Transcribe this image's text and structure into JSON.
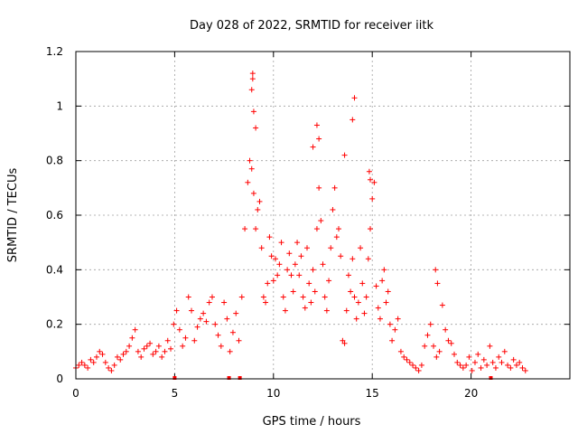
{
  "colors": {
    "series": "#ff0000",
    "background": "#ffffff",
    "grid": "#a0a0a0"
  },
  "chart_data": {
    "type": "scatter",
    "title": "Day 028 of 2022, SRMTID for receiver iitk",
    "xlabel": "GPS time / hours",
    "ylabel": "SRMTID / TECUs",
    "xlim": [
      0,
      25
    ],
    "ylim": [
      0,
      1.2
    ],
    "xticks": [
      0,
      5,
      10,
      15,
      20
    ],
    "xtick_labels": [
      "0",
      "5",
      "10",
      "15",
      "20"
    ],
    "yticks": [
      0,
      0.2,
      0.4,
      0.6,
      0.8,
      1,
      1.2
    ],
    "ytick_labels": [
      "0",
      "0.2",
      "0.4",
      "0.6",
      "0.8",
      "1",
      "1.2"
    ],
    "grid": true,
    "marker": "plus",
    "series": [
      {
        "name": "SRMTID",
        "x": [
          0.0,
          0.15,
          0.3,
          0.45,
          0.6,
          0.75,
          0.9,
          1.05,
          1.2,
          1.35,
          1.5,
          1.65,
          1.8,
          1.95,
          2.1,
          2.25,
          2.4,
          2.55,
          2.7,
          2.85,
          3.0,
          3.15,
          3.3,
          3.45,
          3.6,
          3.75,
          3.9,
          4.05,
          4.2,
          4.35,
          4.5,
          4.65,
          4.8,
          4.95,
          5.1,
          5.25,
          5.4,
          5.55,
          5.7,
          5.85,
          6.0,
          6.15,
          6.3,
          6.45,
          6.6,
          6.75,
          6.9,
          7.05,
          7.2,
          7.35,
          7.5,
          7.65,
          7.8,
          7.95,
          8.1,
          8.25,
          8.4,
          8.55,
          8.7,
          8.8,
          8.9,
          9.0,
          9.1,
          9.2,
          9.3,
          9.4,
          9.5,
          9.6,
          9.7,
          9.8,
          9.9,
          10.0,
          10.1,
          10.2,
          10.3,
          10.4,
          10.5,
          10.6,
          10.7,
          10.8,
          10.9,
          11.0,
          11.1,
          11.2,
          11.3,
          11.4,
          11.5,
          11.6,
          11.7,
          11.8,
          11.9,
          12.0,
          12.1,
          12.2,
          12.3,
          12.4,
          12.5,
          12.6,
          12.7,
          12.8,
          12.9,
          13.0,
          13.1,
          13.2,
          13.3,
          13.4,
          13.5,
          13.6,
          13.7,
          13.8,
          13.9,
          14.0,
          14.1,
          14.2,
          14.3,
          14.4,
          14.5,
          14.6,
          14.7,
          14.8,
          14.9,
          15.0,
          15.1,
          15.2,
          15.3,
          15.4,
          15.5,
          15.6,
          15.7,
          15.8,
          15.9,
          16.0,
          16.15,
          16.3,
          16.45,
          16.6,
          16.75,
          16.9,
          17.05,
          17.2,
          17.35,
          17.5,
          17.65,
          17.8,
          17.95,
          18.1,
          18.25,
          18.4,
          18.55,
          18.7,
          18.85,
          19.0,
          19.15,
          19.3,
          19.45,
          19.6,
          19.75,
          19.9,
          20.05,
          20.2,
          20.35,
          20.5,
          20.65,
          20.8,
          20.95,
          21.1,
          21.25,
          21.4,
          21.55,
          21.7,
          21.85,
          22.0,
          22.15,
          22.3,
          22.45,
          22.6,
          22.75,
          8.95,
          8.95,
          8.9,
          9.0,
          9.1,
          12.2,
          12.3,
          12.0,
          13.6,
          14.1,
          14.0,
          14.85,
          14.9,
          18.2,
          18.3,
          5.0,
          7.75,
          8.3,
          21.0
        ],
        "y": [
          0.04,
          0.05,
          0.06,
          0.05,
          0.04,
          0.07,
          0.06,
          0.08,
          0.1,
          0.09,
          0.06,
          0.04,
          0.03,
          0.05,
          0.08,
          0.07,
          0.09,
          0.1,
          0.12,
          0.15,
          0.18,
          0.1,
          0.08,
          0.11,
          0.12,
          0.13,
          0.09,
          0.1,
          0.12,
          0.08,
          0.1,
          0.14,
          0.11,
          0.2,
          0.25,
          0.18,
          0.12,
          0.15,
          0.3,
          0.25,
          0.14,
          0.19,
          0.22,
          0.24,
          0.21,
          0.28,
          0.3,
          0.2,
          0.16,
          0.12,
          0.28,
          0.22,
          0.1,
          0.17,
          0.24,
          0.14,
          0.3,
          0.55,
          0.72,
          0.8,
          0.77,
          0.68,
          0.55,
          0.62,
          0.65,
          0.48,
          0.3,
          0.28,
          0.35,
          0.52,
          0.45,
          0.36,
          0.44,
          0.38,
          0.42,
          0.5,
          0.3,
          0.25,
          0.4,
          0.46,
          0.38,
          0.32,
          0.42,
          0.5,
          0.38,
          0.45,
          0.3,
          0.26,
          0.48,
          0.35,
          0.28,
          0.4,
          0.32,
          0.55,
          0.7,
          0.58,
          0.42,
          0.3,
          0.25,
          0.36,
          0.48,
          0.62,
          0.7,
          0.52,
          0.55,
          0.45,
          0.14,
          0.13,
          0.25,
          0.38,
          0.32,
          0.44,
          0.3,
          0.22,
          0.28,
          0.48,
          0.35,
          0.24,
          0.3,
          0.44,
          0.55,
          0.66,
          0.72,
          0.34,
          0.26,
          0.22,
          0.36,
          0.4,
          0.28,
          0.32,
          0.2,
          0.14,
          0.18,
          0.22,
          0.1,
          0.08,
          0.07,
          0.06,
          0.05,
          0.04,
          0.03,
          0.05,
          0.12,
          0.16,
          0.2,
          0.12,
          0.08,
          0.1,
          0.27,
          0.18,
          0.14,
          0.13,
          0.09,
          0.06,
          0.05,
          0.04,
          0.05,
          0.08,
          0.03,
          0.06,
          0.09,
          0.04,
          0.07,
          0.05,
          0.12,
          0.06,
          0.04,
          0.08,
          0.06,
          0.1,
          0.05,
          0.04,
          0.07,
          0.05,
          0.06,
          0.04,
          0.03,
          1.12,
          1.1,
          1.06,
          0.98,
          0.92,
          0.93,
          0.88,
          0.85,
          0.82,
          1.03,
          0.95,
          0.76,
          0.73,
          0.4,
          0.35,
          0.0,
          0.0,
          0.0,
          0.0
        ]
      }
    ]
  }
}
